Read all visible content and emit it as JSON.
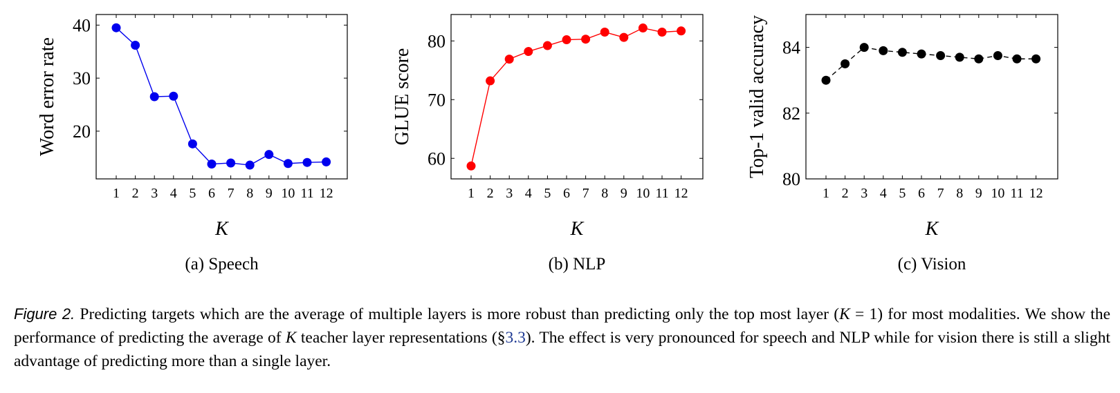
{
  "chart_data": [
    {
      "type": "line",
      "caption": "(a) Speech",
      "xlabel": "K",
      "ylabel": "Word error rate",
      "x": [
        1,
        2,
        3,
        4,
        5,
        6,
        7,
        8,
        9,
        10,
        11,
        12
      ],
      "y": [
        39.5,
        36.2,
        26.5,
        26.6,
        17.6,
        13.8,
        14.0,
        13.6,
        15.6,
        13.9,
        14.1,
        14.2
      ],
      "ylim": [
        11,
        42
      ],
      "yticks": [
        20,
        30,
        40
      ],
      "color": "#0000ee",
      "line_style": "solid"
    },
    {
      "type": "line",
      "caption": "(b) NLP",
      "xlabel": "K",
      "ylabel": "GLUE score",
      "x": [
        1,
        2,
        3,
        4,
        5,
        6,
        7,
        8,
        9,
        10,
        11,
        12
      ],
      "y": [
        58.7,
        73.2,
        76.9,
        78.2,
        79.2,
        80.2,
        80.3,
        81.5,
        80.6,
        82.2,
        81.5,
        81.7
      ],
      "ylim": [
        56.5,
        84.5
      ],
      "yticks": [
        60,
        70,
        80
      ],
      "color": "#ff0000",
      "line_style": "solid"
    },
    {
      "type": "line",
      "caption": "(c) Vision",
      "xlabel": "K",
      "ylabel": "Top-1 valid accuracy",
      "x": [
        1,
        2,
        3,
        4,
        5,
        6,
        7,
        8,
        9,
        10,
        11,
        12
      ],
      "y": [
        83.0,
        83.5,
        84.0,
        83.9,
        83.85,
        83.8,
        83.75,
        83.7,
        83.65,
        83.75,
        83.65,
        83.65
      ],
      "ylim": [
        80,
        85
      ],
      "yticks": [
        80,
        82,
        84
      ],
      "color": "#000000",
      "line_style": "dashed"
    }
  ],
  "figure_caption": {
    "label": "Figure 2.",
    "text_1": " Predicting targets which are the average of multiple layers is more robust than predicting only the top most layer (",
    "math_1": "K",
    "text_2": " = 1) for most modalities. We show the performance of predicting the average of ",
    "math_2": "K",
    "text_3": " teacher layer representations (§",
    "ref": "3.3",
    "text_4": "). The effect is very pronounced for speech and NLP while for vision there is still a slight advantage of predicting more than a single layer."
  }
}
